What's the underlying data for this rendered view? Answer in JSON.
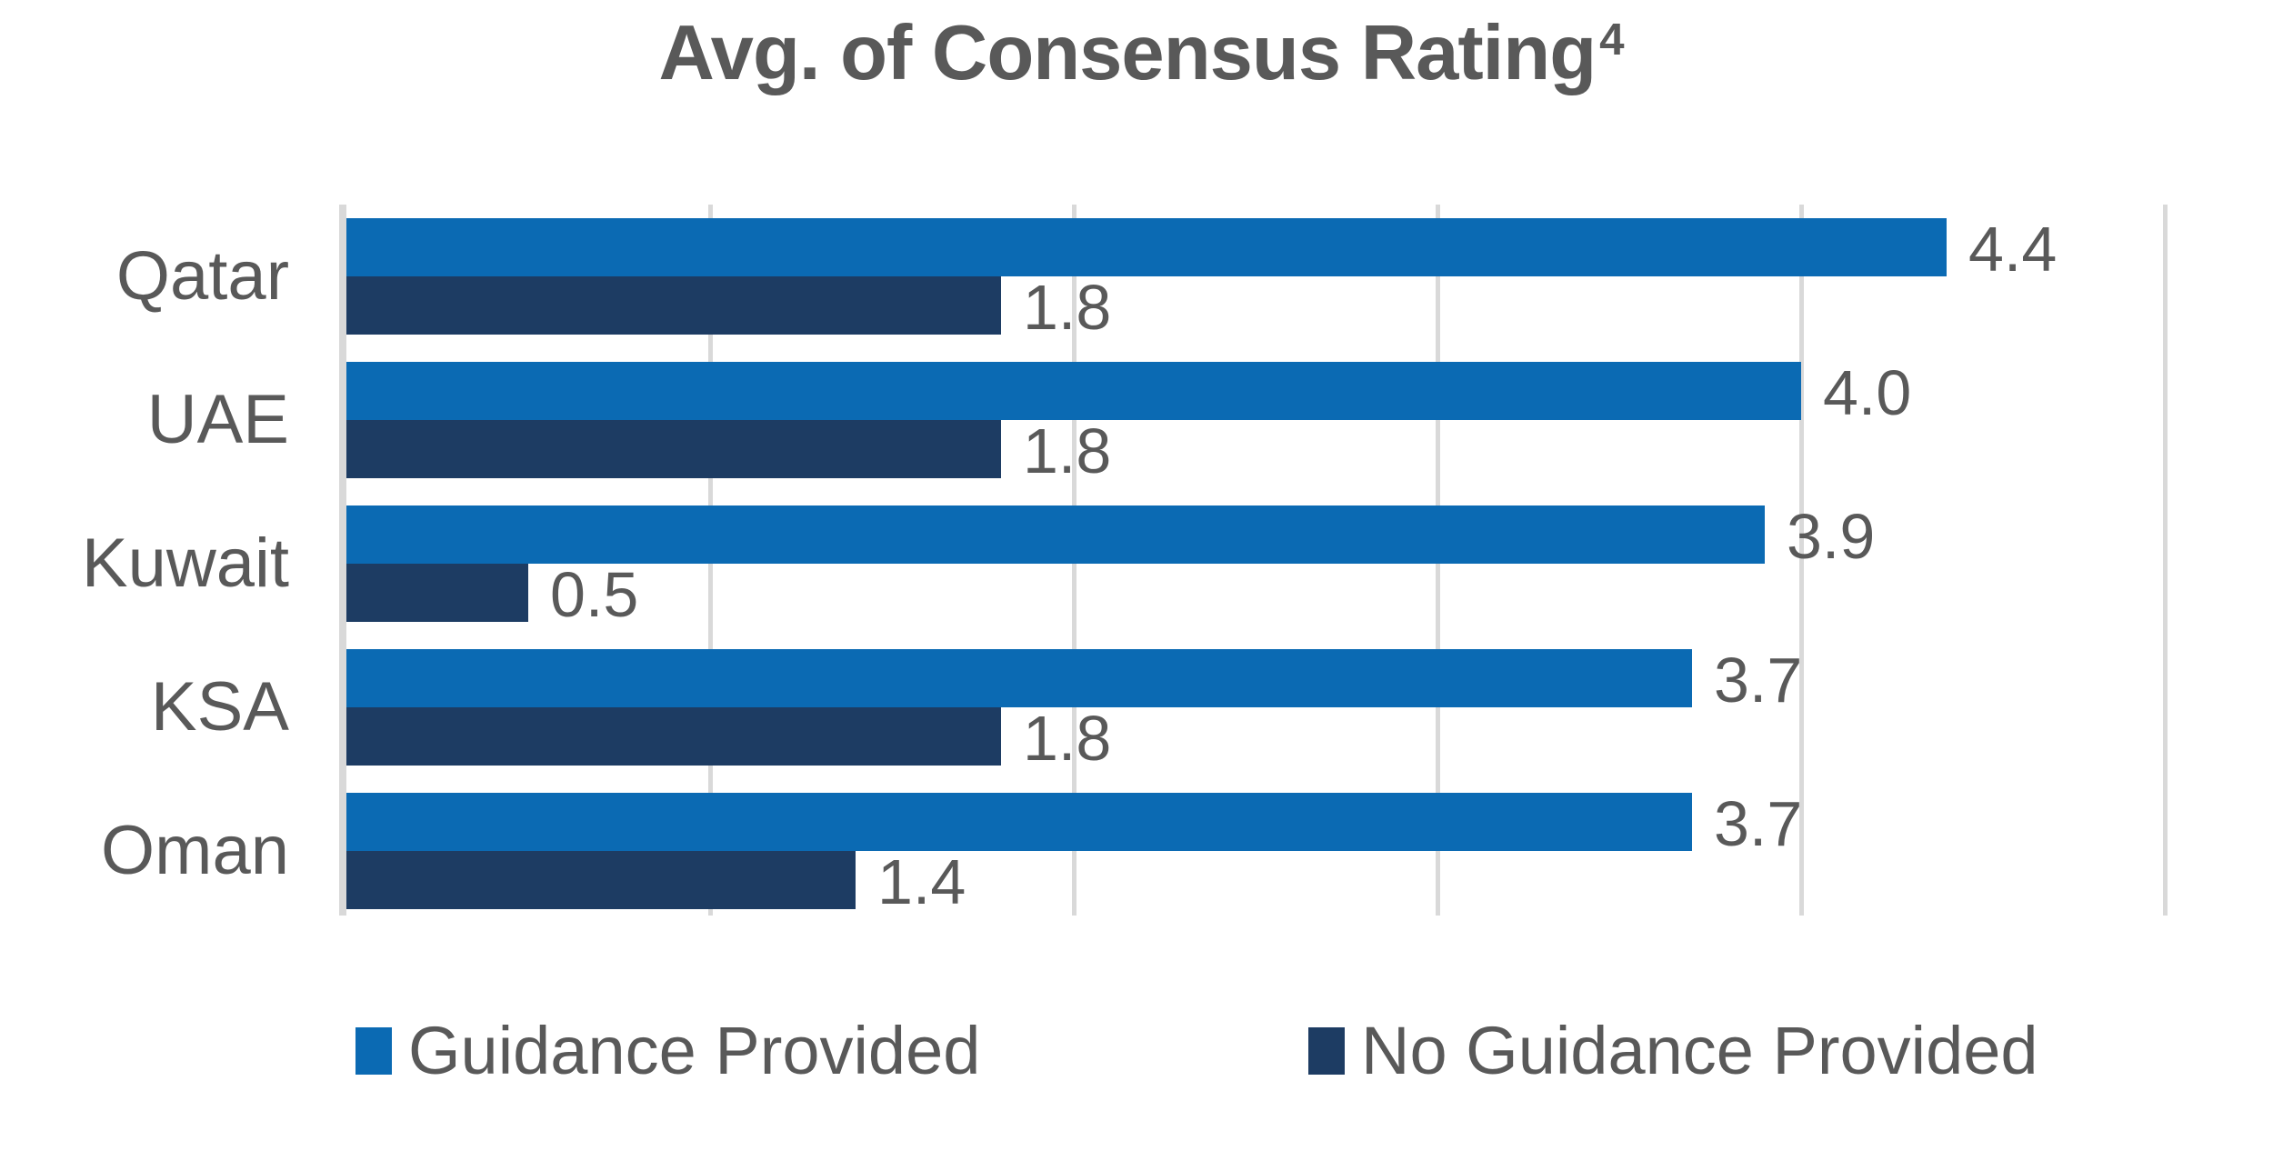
{
  "title": {
    "text": "Avg. of Consensus Rating",
    "superscript": "4"
  },
  "colors": {
    "guidance_provided": "#0b6ab3",
    "no_guidance_provided": "#1d3c63",
    "text": "#595959",
    "gridline": "#d9d9d9"
  },
  "legend": {
    "items": [
      {
        "label": "Guidance Provided",
        "color_key": "guidance_provided"
      },
      {
        "label": "No Guidance Provided",
        "color_key": "no_guidance_provided"
      }
    ]
  },
  "chart_data": {
    "type": "bar",
    "orientation": "horizontal",
    "title": "Avg. of Consensus Rating⁴",
    "categories": [
      "Qatar",
      "UAE",
      "Kuwait",
      "KSA",
      "Oman"
    ],
    "series": [
      {
        "name": "Guidance Provided",
        "color_key": "guidance_provided",
        "values": [
          4.4,
          4.0,
          3.9,
          3.7,
          3.7
        ],
        "labels": [
          "4.4",
          "4.0",
          "3.9",
          "3.7",
          "3.7"
        ]
      },
      {
        "name": "No Guidance Provided",
        "color_key": "no_guidance_provided",
        "values": [
          1.8,
          1.8,
          0.5,
          1.8,
          1.4
        ],
        "labels": [
          "1.8",
          "1.8",
          "0.5",
          "1.8",
          "1.4"
        ]
      }
    ],
    "xlim": [
      0,
      5
    ],
    "gridlines": [
      0,
      1,
      2,
      3,
      4,
      5
    ],
    "grid": true,
    "value_labels_shown": true,
    "legend_position": "bottom"
  }
}
